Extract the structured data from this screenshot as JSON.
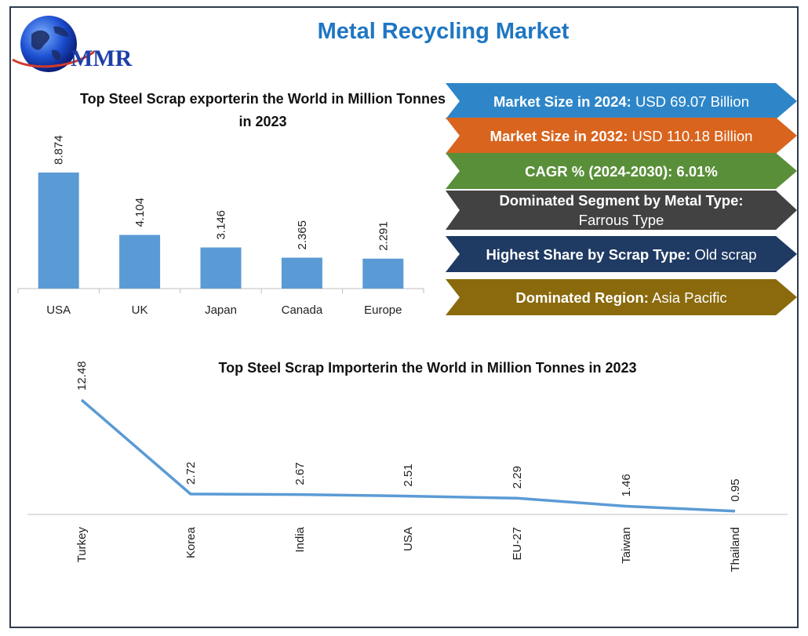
{
  "header": {
    "title": "Metal Recycling Market",
    "logo_text": "MMR"
  },
  "colors": {
    "title_blue": "#1f76c2",
    "bar_blue": "#5b9bd5",
    "line_blue": "#5b9bd5"
  },
  "highlights": [
    {
      "label": "Market Size in 2024:",
      "value": "USD 69.07 Billion",
      "color": "#2e86c9"
    },
    {
      "label": "Market Size in 2032:",
      "value": "USD 110.18 Billion",
      "color": "#d9641e"
    },
    {
      "label": "CAGR % (2024-2030): 6.01%",
      "value": "",
      "color": "#5a8f3a"
    },
    {
      "label": "Dominated Segment by Metal Type:",
      "value": "Farrous Type",
      "color": "#424242"
    },
    {
      "label": "Highest Share by Scrap Type:",
      "value": "Old scrap",
      "color": "#1f3a63"
    },
    {
      "label": "Dominated Region:",
      "value": "Asia Pacific",
      "color": "#8a6a0c"
    }
  ],
  "chart_data": [
    {
      "type": "bar",
      "title": "Top Steel Scrap exporterin the World in Million Tonnes in 2023",
      "categories": [
        "USA",
        "UK",
        "Japan",
        "Canada",
        "Europe"
      ],
      "values": [
        8.874,
        4.104,
        3.146,
        2.365,
        2.291
      ],
      "value_labels": [
        "8.874",
        "4.104",
        "3.146",
        "2.365",
        "2.291"
      ],
      "ylim": [
        0,
        10
      ],
      "grid": false,
      "legend": "none"
    },
    {
      "type": "line",
      "title": "Top Steel Scrap Importerin the World in Million Tonnes in 2023",
      "categories": [
        "Turkey",
        "Korea",
        "India",
        "USA",
        "EU-27",
        "Taiwan",
        "Thailand"
      ],
      "values": [
        12.48,
        2.72,
        2.67,
        2.51,
        2.29,
        1.46,
        0.95
      ],
      "value_labels": [
        "12.48",
        "2.72",
        "2.67",
        "2.51",
        "2.29",
        "1.46",
        "0.95"
      ],
      "ylim": [
        0,
        14.9
      ],
      "grid": false,
      "legend": "none"
    }
  ]
}
